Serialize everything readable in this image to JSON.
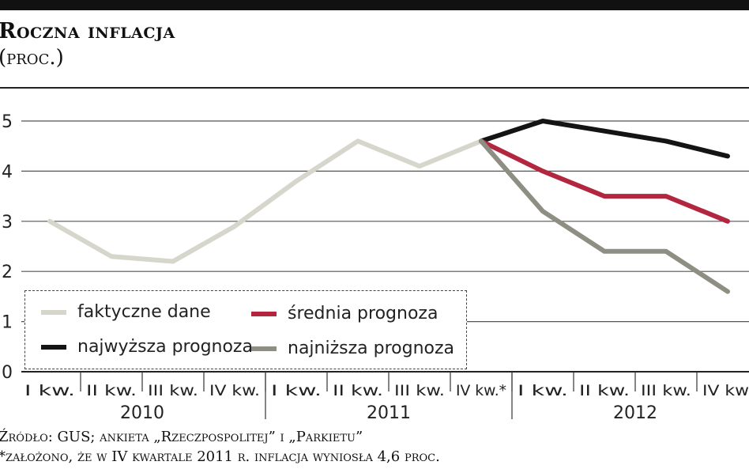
{
  "header": {
    "title": "Roczna inflacja",
    "subtitle": "(proc.)"
  },
  "chart_data": {
    "type": "line",
    "categories": [
      "I kw.",
      "II kw.",
      "III kw.",
      "IV kw.",
      "I kw.",
      "II kw.",
      "III kw.",
      "IV kw.*",
      "I kw.",
      "II kw.",
      "III kw.",
      "IV kw."
    ],
    "year_groups": [
      {
        "label": "2010",
        "span": [
          0,
          3
        ]
      },
      {
        "label": "2011",
        "span": [
          4,
          7
        ]
      },
      {
        "label": "2012",
        "span": [
          8,
          11
        ]
      }
    ],
    "ylim": [
      0,
      5
    ],
    "yticks": [
      "0",
      "1",
      "2",
      "3",
      "4",
      "5"
    ],
    "grid": "horizontal",
    "legend_position": "bottom-left",
    "series": [
      {
        "name": "faktyczne dane",
        "color": "#d6d6cc",
        "x": [
          0,
          1,
          2,
          3,
          4,
          5,
          6,
          7
        ],
        "values": [
          3.0,
          2.3,
          2.2,
          2.9,
          3.8,
          4.6,
          4.1,
          4.6
        ]
      },
      {
        "name": "najwyższa prognoza",
        "color": "#141414",
        "x": [
          7,
          8,
          9,
          10,
          11
        ],
        "values": [
          4.6,
          5.0,
          4.8,
          4.6,
          4.3
        ]
      },
      {
        "name": "średnia prognoza",
        "color": "#b3263f",
        "x": [
          7,
          8,
          9,
          10,
          11
        ],
        "values": [
          4.6,
          4.0,
          3.5,
          3.5,
          3.0
        ]
      },
      {
        "name": "najniższa prognoza",
        "color": "#8e8e82",
        "x": [
          7,
          8,
          9,
          10,
          11
        ],
        "values": [
          4.6,
          3.2,
          2.4,
          2.4,
          1.6
        ]
      }
    ]
  },
  "legend": {
    "items": [
      {
        "label": "faktyczne dane",
        "color": "#d6d6cc"
      },
      {
        "label": "średnia prognoza",
        "color": "#b3263f"
      },
      {
        "label": "najwyższa prognoza",
        "color": "#141414"
      },
      {
        "label": "najniższa prognoza",
        "color": "#8e8e82"
      }
    ]
  },
  "footer": {
    "source": "Źródło: GUS; ankieta „Rzeczpospolitej” i „Parkietu”",
    "note": "*założono, że w IV kwartale 2011 r. inflacja wyniosła 4,6 proc."
  }
}
